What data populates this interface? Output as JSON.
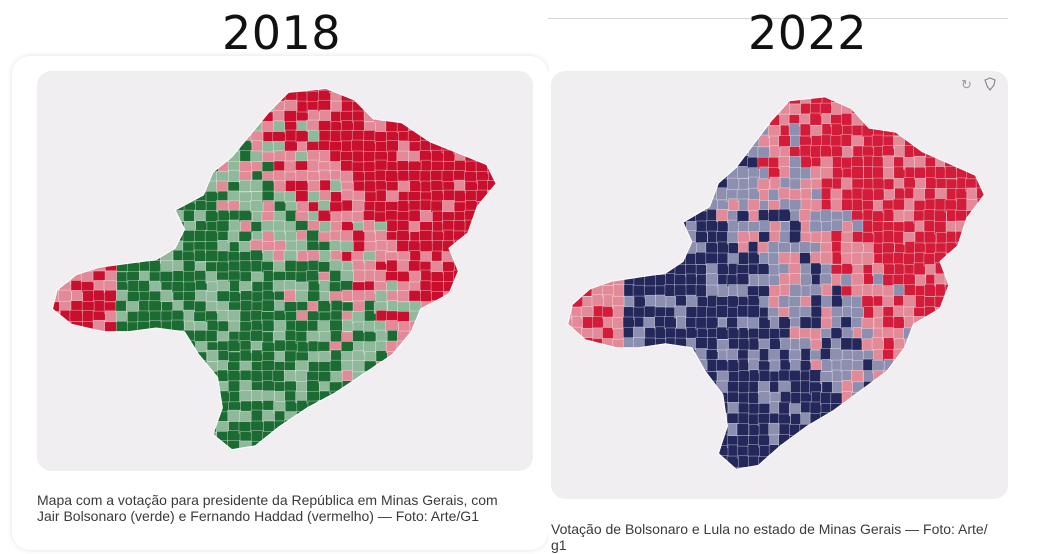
{
  "panels": [
    {
      "year": "2018",
      "caption": "Mapa com a votação para presidente da República em Minas Gerais, com Jair Bolsonaro (verde) e Fernando Haddad (vermelho) — Foto: Arte/G1",
      "colors": {
        "candidate_a_strong": "#1c6b32",
        "candidate_a_light": "#8fb99a",
        "candidate_b_strong": "#c8102e",
        "candidate_b_light": "#e38a98"
      }
    },
    {
      "year": "2022",
      "caption": "Votação de Bolsonaro e Lula no estado de Minas Gerais — Foto: Arte/ g1",
      "colors": {
        "candidate_a_strong": "#23275a",
        "candidate_a_light": "#8d8fb0",
        "candidate_b_strong": "#d21c3a",
        "candidate_b_light": "#e38a98"
      },
      "controls": {
        "reset_icon": "reset-icon",
        "map_icon": "brazil-map-icon"
      }
    }
  ]
}
